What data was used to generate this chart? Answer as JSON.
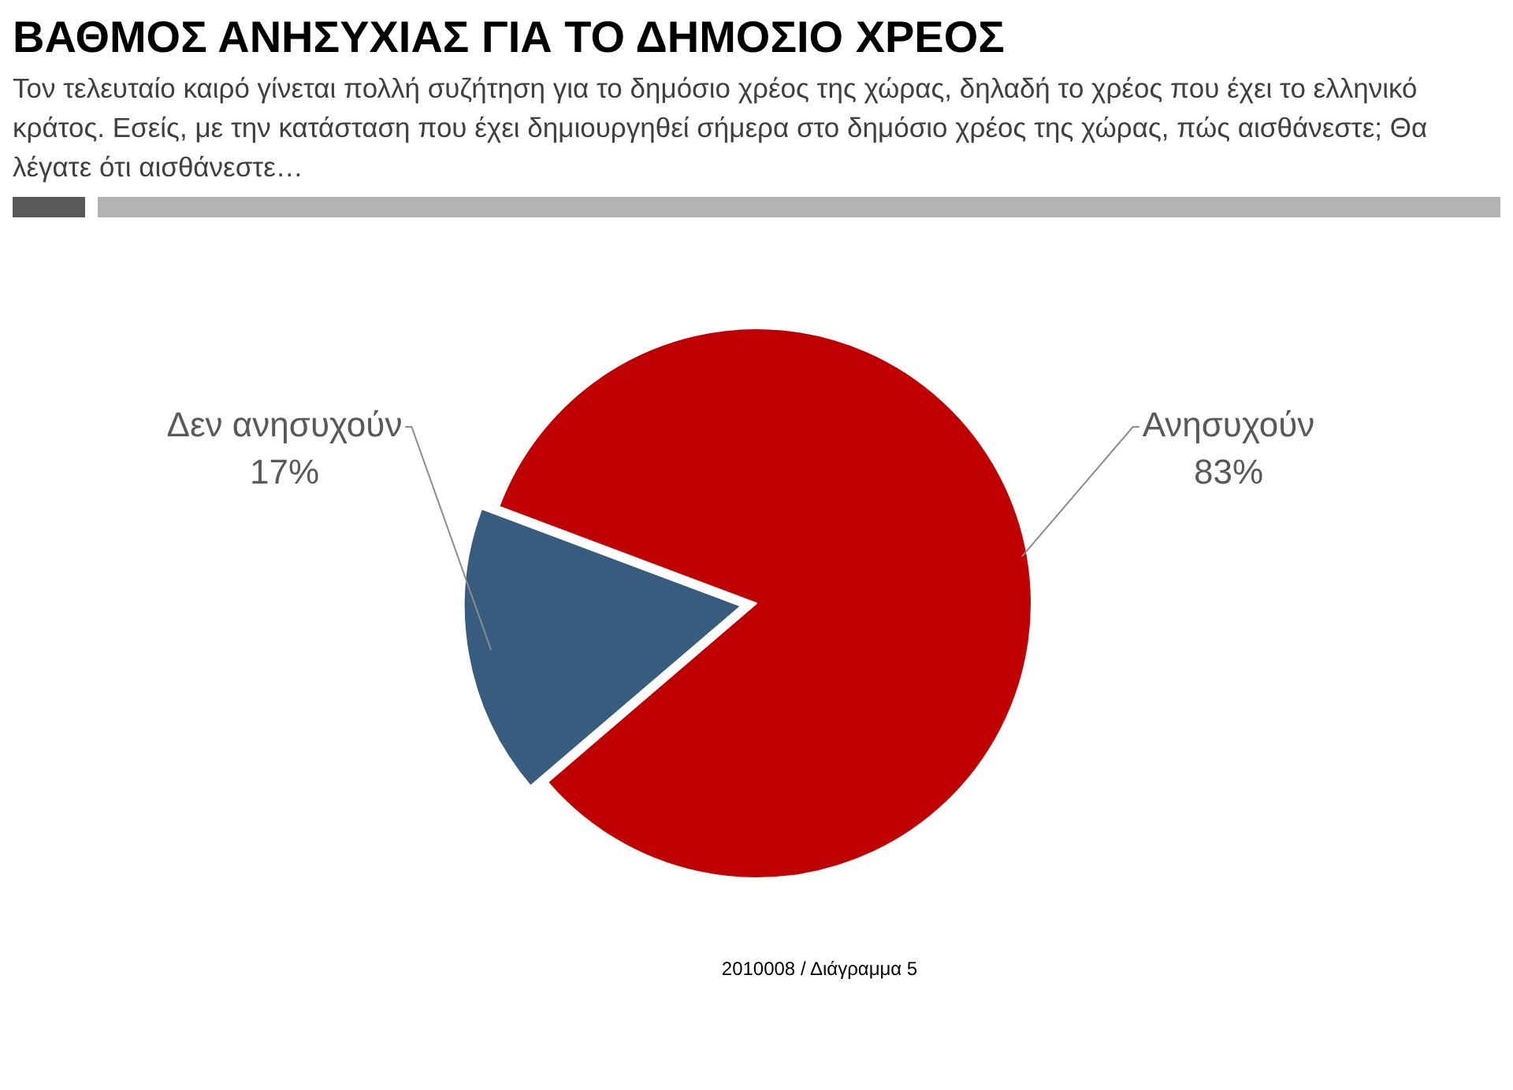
{
  "chart_data": {
    "type": "pie",
    "title": "ΒΑΘΜΟΣ ΑΝΗΣΥΧΙΑΣ ΓΙΑ ΤΟ ΔΗΜΟΣΙΟ ΧΡΕΟΣ",
    "subtitle": "Τον τελευταίο καιρό γίνεται πολλή συζήτηση για το δημόσιο χρέος της χώρας, δηλαδή το χρέος που έχει το ελληνικό κράτος. Εσείς, με την κατάσταση που έχει δημιουργηθεί σήμερα στο δημόσιο χρέος της χώρας, πώς αισθάνεστε; Θα λέγατε ότι αισθάνεστε…",
    "categories": [
      "Δεν ανησυχούν",
      "Ανησυχούν"
    ],
    "values": [
      17,
      83
    ],
    "colors": [
      "#375c7e",
      "#c00000"
    ],
    "value_labels": [
      "17%",
      "83%"
    ],
    "legend": false,
    "annotations": [
      "2010008 / Διάγραμμα 5"
    ]
  }
}
